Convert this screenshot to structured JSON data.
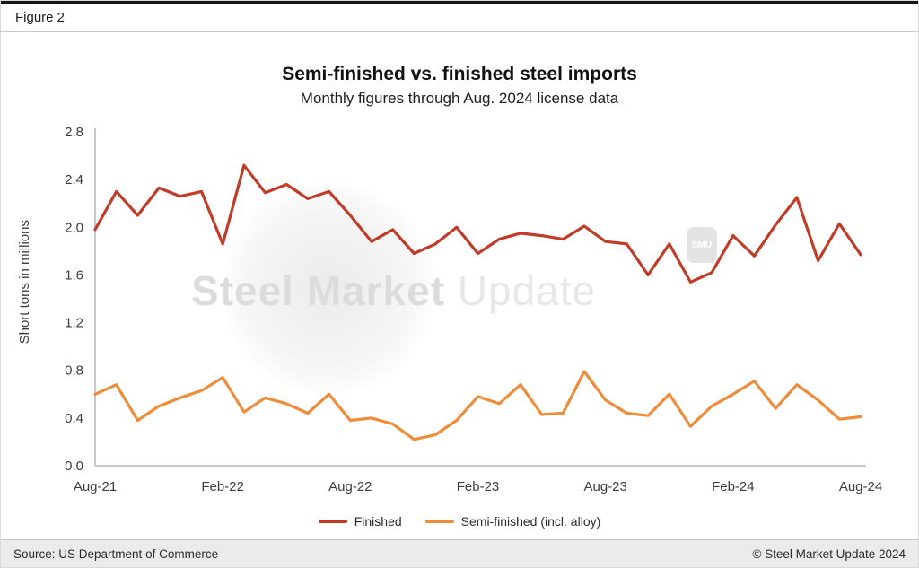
{
  "figure_label": "Figure 2",
  "chart_data": {
    "type": "line",
    "title": "Semi-finished vs. finished steel imports",
    "subtitle": "Monthly figures through Aug. 2024 license data",
    "ylabel": "Short tons in millions",
    "ylim": [
      0,
      2.8
    ],
    "y_ticks": [
      0,
      0.4,
      0.8,
      1.2,
      1.6,
      2,
      2.4,
      2.8
    ],
    "x_tick_labels": [
      "Aug-21",
      "Feb-22",
      "Aug-22",
      "Feb-23",
      "Aug-23",
      "Feb-24",
      "Aug-24"
    ],
    "x_tick_indices": [
      0,
      6,
      12,
      18,
      24,
      30,
      36
    ],
    "grid": false,
    "legend_position": "bottom",
    "months": [
      "Aug-21",
      "Sep-21",
      "Oct-21",
      "Nov-21",
      "Dec-21",
      "Jan-22",
      "Feb-22",
      "Mar-22",
      "Apr-22",
      "May-22",
      "Jun-22",
      "Jul-22",
      "Aug-22",
      "Sep-22",
      "Oct-22",
      "Nov-22",
      "Dec-22",
      "Jan-23",
      "Feb-23",
      "Mar-23",
      "Apr-23",
      "May-23",
      "Jun-23",
      "Jul-23",
      "Aug-23",
      "Sep-23",
      "Oct-23",
      "Nov-23",
      "Dec-23",
      "Jan-24",
      "Feb-24",
      "Mar-24",
      "Apr-24",
      "May-24",
      "Jun-24",
      "Jul-24",
      "Aug-24"
    ],
    "series": [
      {
        "name": "Finished",
        "color": "#c13b27",
        "values": [
          1.98,
          2.3,
          2.1,
          2.33,
          2.26,
          2.3,
          1.86,
          2.52,
          2.29,
          2.36,
          2.24,
          2.3,
          2.1,
          1.88,
          1.98,
          1.78,
          1.86,
          2.0,
          1.78,
          1.9,
          1.95,
          1.93,
          1.9,
          2.01,
          1.88,
          1.86,
          1.6,
          1.86,
          1.54,
          1.62,
          1.93,
          1.76,
          2.02,
          2.25,
          1.72,
          2.03,
          1.77
        ]
      },
      {
        "name": "Semi-finished (incl. alloy)",
        "color": "#ef8c3a",
        "values": [
          0.6,
          0.68,
          0.38,
          0.5,
          0.57,
          0.63,
          0.74,
          0.45,
          0.57,
          0.52,
          0.44,
          0.6,
          0.38,
          0.4,
          0.35,
          0.22,
          0.26,
          0.38,
          0.58,
          0.52,
          0.68,
          0.43,
          0.44,
          0.79,
          0.55,
          0.44,
          0.42,
          0.6,
          0.33,
          0.5,
          0.6,
          0.71,
          0.48,
          0.68,
          0.55,
          0.39,
          0.41
        ]
      }
    ]
  },
  "watermark": {
    "text_bold": "Steel Market",
    "text_light": "Update",
    "badge": "SMU"
  },
  "footer": {
    "source": "Source: US Department of Commerce",
    "copyright": "© Steel Market Update 2024"
  }
}
